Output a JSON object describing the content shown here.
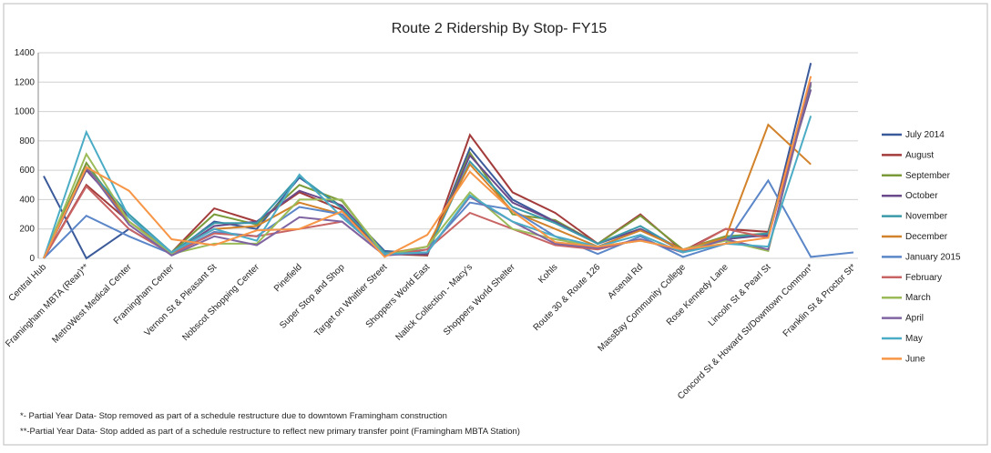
{
  "chart_data": {
    "type": "line",
    "title": "Route 2 Ridership By Stop- FY15",
    "categories": [
      "Central Hub",
      "Framingham MBTA (Rear)**",
      "MetroWest Medical Center",
      "Framingham Center",
      "Vernon St & Pleasant St",
      "Nobscot Shopping Center",
      "Pinefield",
      "Super Stop and Shop",
      "Target on Whittier Street",
      "Shoppers World East",
      "Natick Collection - Macy's",
      "Shoppers World Shelter",
      "Kohls",
      "Route 30 & Route 126",
      "Arsenal Rd",
      "MassBay Community College",
      "Rose Kennedy Lane",
      "Lincoln St & Pearl St",
      "Concord St & Howard St/Downtown Common*",
      "Franklin St & Proctor St*"
    ],
    "series": [
      {
        "name": "July 2014",
        "color": "#3b5a9a",
        "values": [
          560,
          0,
          200,
          30,
          250,
          200,
          550,
          350,
          50,
          30,
          750,
          400,
          250,
          100,
          200,
          50,
          150,
          150,
          1330,
          null
        ]
      },
      {
        "name": "August",
        "color": "#a33b3b",
        "values": [
          0,
          500,
          250,
          40,
          340,
          250,
          450,
          330,
          30,
          20,
          840,
          450,
          310,
          100,
          300,
          50,
          200,
          180,
          1200,
          null
        ]
      },
      {
        "name": "September",
        "color": "#7a9a3a",
        "values": [
          0,
          650,
          250,
          40,
          300,
          230,
          500,
          390,
          30,
          30,
          720,
          300,
          260,
          100,
          290,
          60,
          150,
          170,
          1180,
          null
        ]
      },
      {
        "name": "October",
        "color": "#6a4a8a",
        "values": [
          0,
          600,
          280,
          30,
          220,
          250,
          460,
          360,
          30,
          30,
          700,
          380,
          250,
          100,
          200,
          60,
          130,
          160,
          1150,
          null
        ]
      },
      {
        "name": "November",
        "color": "#3a9aaa",
        "values": [
          0,
          620,
          300,
          40,
          240,
          240,
          560,
          340,
          40,
          40,
          660,
          350,
          240,
          100,
          220,
          50,
          140,
          170,
          1180,
          null
        ]
      },
      {
        "name": "December",
        "color": "#d2822a",
        "values": [
          0,
          620,
          250,
          40,
          200,
          220,
          380,
          300,
          30,
          80,
          640,
          320,
          200,
          80,
          190,
          60,
          140,
          910,
          640,
          null
        ]
      },
      {
        "name": "January 2015",
        "color": "#5b86c8",
        "values": [
          0,
          290,
          150,
          30,
          180,
          150,
          350,
          300,
          30,
          60,
          380,
          330,
          150,
          30,
          150,
          10,
          100,
          530,
          10,
          40
        ]
      },
      {
        "name": "February",
        "color": "#c86464",
        "values": [
          0,
          490,
          200,
          30,
          170,
          150,
          200,
          250,
          20,
          60,
          310,
          200,
          90,
          60,
          130,
          40,
          200,
          140,
          1190,
          null
        ]
      },
      {
        "name": "March",
        "color": "#9bbb59",
        "values": [
          0,
          710,
          250,
          30,
          100,
          100,
          400,
          400,
          20,
          80,
          450,
          200,
          130,
          80,
          120,
          60,
          120,
          50,
          1200,
          null
        ]
      },
      {
        "name": "April",
        "color": "#8064a2",
        "values": [
          0,
          620,
          230,
          20,
          150,
          90,
          280,
          250,
          20,
          40,
          420,
          250,
          100,
          70,
          130,
          40,
          130,
          60,
          1200,
          null
        ]
      },
      {
        "name": "May",
        "color": "#4bacc6",
        "values": [
          0,
          860,
          280,
          40,
          200,
          120,
          570,
          280,
          30,
          40,
          430,
          250,
          150,
          80,
          160,
          40,
          100,
          80,
          970,
          null
        ]
      },
      {
        "name": "June",
        "color": "#f79646",
        "values": [
          0,
          620,
          460,
          130,
          90,
          190,
          200,
          320,
          10,
          160,
          590,
          320,
          110,
          80,
          120,
          60,
          100,
          140,
          1240,
          null
        ]
      }
    ],
    "ylim": [
      0,
      1400
    ],
    "yticks": [
      0,
      200,
      400,
      600,
      800,
      1000,
      1200,
      1400
    ],
    "grid": true,
    "legend": "right",
    "notes": [
      "*-  Partial Year Data- Stop removed as part of a schedule restructure due to downtown Framingham construction",
      "**-Partial Year Data- Stop added as part of a schedule restructure to reflect new primary transfer point (Framingham MBTA Station)"
    ]
  }
}
